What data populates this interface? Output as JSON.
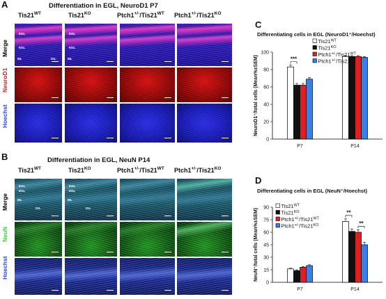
{
  "panel_a": {
    "letter": "A",
    "title": "Differentiation in EGL, NeuroD1 P7",
    "columns": [
      {
        "base": "Tis21",
        "sup": "WT"
      },
      {
        "base": "Tis21",
        "sup": "KO"
      },
      {
        "base": "Ptch1",
        "sup": "+/-",
        "mid": "/Tis21",
        "sup2": "WT"
      },
      {
        "base": "Ptch1",
        "sup": "+/-",
        "mid": "/Tis21",
        "sup2": "KO"
      }
    ],
    "rows": [
      "Merge",
      "NeuroD1",
      "Hoechst"
    ],
    "row_colors": [
      "#000000",
      "#d81b1b",
      "#2b3fd9"
    ],
    "merge_labels": {
      "egl1": "EGL",
      "egl2": "EGL",
      "ml": "ML",
      "igl": "IGL"
    }
  },
  "panel_b": {
    "letter": "B",
    "title": "Differentiation in EGL, NeuN P14",
    "columns": [
      {
        "base": "Tis21",
        "sup": "WT"
      },
      {
        "base": "Tis21",
        "sup": "KO"
      },
      {
        "base": "Ptch1",
        "sup": "+/-",
        "mid": "/Tis21",
        "sup2": "WT"
      },
      {
        "base": "Ptch1",
        "sup": "+/-",
        "mid": "/Tis21",
        "sup2": "KO"
      }
    ],
    "rows": [
      "Merge",
      "NeuN",
      "Hoechst"
    ],
    "row_colors": [
      "#000000",
      "#3cc83c",
      "#2b3fd9"
    ],
    "merge_labels": {
      "egl1": "EGL",
      "egl2": "EGL",
      "ml": "ML",
      "igl": "IGL"
    }
  },
  "panel_c": {
    "letter": "C"
  },
  "panel_d": {
    "letter": "D"
  },
  "colors": {
    "wt": "#ffffff",
    "ko": "#111111",
    "ptch_wt": "#e02020",
    "ptch_ko": "#3a7fe8"
  },
  "chart_data": [
    {
      "type": "bar",
      "title": "Differentiating cells in EGL (NeuroD1⁺/Hoechst)",
      "ylabel": "NeuroD1⁺/total cells (Mean%±SEM)",
      "xlabel": "",
      "categories": [
        "P7",
        "P14"
      ],
      "ylim": [
        0,
        100
      ],
      "yticks": [
        0,
        20,
        40,
        60,
        80,
        100
      ],
      "legend_position": "top-right",
      "series": [
        {
          "name": "Tis21WT",
          "values": [
            83,
            95
          ],
          "errors": [
            2,
            1
          ]
        },
        {
          "name": "Tis21KO",
          "values": [
            62,
            95
          ],
          "errors": [
            2,
            1
          ]
        },
        {
          "name": "Ptch1+/-/Tis21WT",
          "values": [
            62,
            95
          ],
          "errors": [
            2,
            1
          ]
        },
        {
          "name": "Ptch1+/-/Tis21KO",
          "values": [
            69,
            94
          ],
          "errors": [
            2,
            1
          ]
        }
      ],
      "annotations": [
        {
          "text": "***",
          "category": "P7"
        }
      ]
    },
    {
      "type": "bar",
      "title": "Differentiating cells in EGL (NeuN⁺/Hoechst)",
      "ylabel": "NeuN⁺/total cells (Mean%±SEM)",
      "xlabel": "",
      "categories": [
        "P7",
        "P14"
      ],
      "ylim": [
        0,
        90
      ],
      "yticks": [
        0,
        15,
        30,
        45,
        60,
        75,
        90
      ],
      "legend_position": "top-left",
      "series": [
        {
          "name": "Tis21WT",
          "values": [
            16,
            73
          ],
          "errors": [
            1,
            3
          ]
        },
        {
          "name": "Tis21KO",
          "values": [
            14,
            61
          ],
          "errors": [
            1,
            3
          ]
        },
        {
          "name": "Ptch1+/-/Tis21WT",
          "values": [
            18,
            60
          ],
          "errors": [
            1,
            3
          ]
        },
        {
          "name": "Ptch1+/-/Tis21KO",
          "values": [
            20,
            45
          ],
          "errors": [
            1,
            3
          ]
        }
      ],
      "annotations": [
        {
          "text": "**",
          "category": "P14"
        },
        {
          "text": "**",
          "category": "P14"
        }
      ]
    }
  ],
  "legend_items": [
    {
      "base": "Tis21",
      "sup": "WT"
    },
    {
      "base": "Tis21",
      "sup": "KO"
    },
    {
      "base": "Ptch1",
      "sup": "+/-",
      "mid": "/Tis21",
      "sup2": "WT"
    },
    {
      "base": "Ptch1",
      "sup": "+/-",
      "mid": "/Tis21",
      "sup2": "KO"
    }
  ]
}
